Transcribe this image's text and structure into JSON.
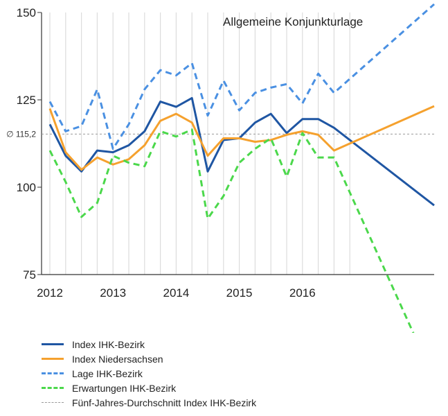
{
  "chart_data": {
    "type": "line",
    "title": "Allgemeine Konjunkturlage",
    "x": [
      2012,
      2012.25,
      2012.5,
      2012.75,
      2013,
      2013.25,
      2013.5,
      2013.75,
      2014,
      2014.25,
      2014.5,
      2014.75,
      2015,
      2015.25,
      2015.5,
      2015.75,
      2016,
      2016.25,
      2016.5,
      2016.75
    ],
    "xticks": [
      "2012",
      "2013",
      "2014",
      "2015",
      "2016"
    ],
    "xtick_values": [
      2012,
      2013,
      2014,
      2015,
      2016
    ],
    "yticks": [
      "75",
      "100",
      "125",
      "150"
    ],
    "ytick_values": [
      75,
      100,
      125,
      150
    ],
    "ylim": [
      75,
      150
    ],
    "average": {
      "value": 115.2,
      "label": "∅ 115,2"
    },
    "series": [
      {
        "name": "Index IHK-Bezirk",
        "color": "#1f56a3",
        "dash": "solid",
        "values": [
          118,
          109,
          104.5,
          110.5,
          110,
          112,
          116,
          124.5,
          123,
          125.5,
          104.5,
          113.5,
          114,
          118.5,
          121,
          115.5,
          119.5,
          119.5,
          117,
          113.5
        ]
      },
      {
        "name": "Index Niedersachsen",
        "color": "#f5a12e",
        "dash": "solid",
        "values": [
          122.5,
          110,
          105,
          108.5,
          106.5,
          108,
          112,
          119,
          121,
          118.5,
          109,
          114,
          114,
          113,
          113.5,
          115,
          116,
          115,
          110.5,
          112.5
        ]
      },
      {
        "name": "Lage IHK-Bezirk",
        "color": "#4a90e2",
        "dash": "dashed",
        "values": [
          124.5,
          116,
          117.5,
          128,
          111,
          118,
          128,
          133.5,
          132,
          135.5,
          120.5,
          130.5,
          122,
          127,
          128.5,
          129.5,
          124,
          132.5,
          127,
          131
        ]
      },
      {
        "name": "Erwartungen IHK-Bezirk",
        "color": "#4bd84b",
        "dash": "dashed",
        "values": [
          110.5,
          101.5,
          91.5,
          95.5,
          109,
          107,
          106,
          116,
          114.5,
          116.5,
          91,
          97.5,
          107,
          111,
          114,
          103,
          115.5,
          108.5,
          108.5,
          98.5
        ]
      }
    ],
    "average_series_name": "Fünf-Jahres-Durchschnitt Index IHK-Bezirk",
    "grid": "vertical"
  }
}
